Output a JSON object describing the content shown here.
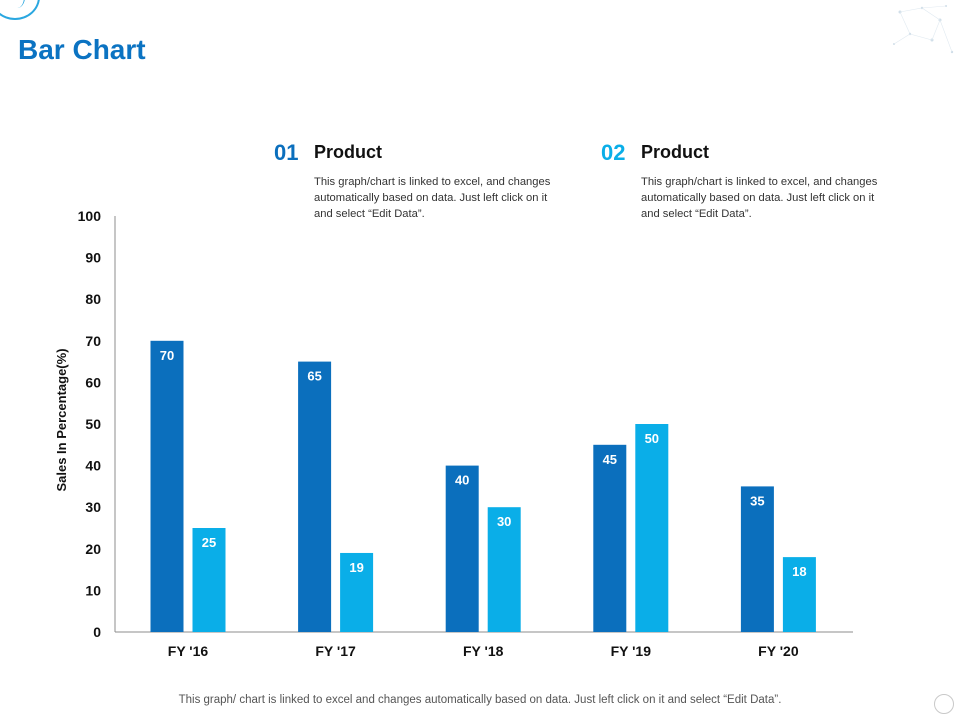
{
  "title": "Bar Chart",
  "legend": [
    {
      "number": "01",
      "name": "Product",
      "description": "This graph/chart is linked to excel, and changes automatically based on data. Just left click on it and select “Edit Data”.",
      "color": "#0b6fbd"
    },
    {
      "number": "02",
      "name": "Product",
      "description": "This graph/chart is linked to excel, and changes automatically based on data. Just left click on it and select “Edit Data”.",
      "color": "#0aaee8"
    }
  ],
  "footer": "This graph/ chart is linked to excel and changes automatically based on data. Just left click on it and select “Edit Data”.",
  "chart_data": {
    "type": "bar",
    "title": "",
    "xlabel": "",
    "ylabel": "Sales In Percentage(%)",
    "categories": [
      "FY '16",
      "FY '17",
      "FY '18",
      "FY '19",
      "FY '20"
    ],
    "series": [
      {
        "name": "01 Product",
        "values": [
          70,
          65,
          40,
          45,
          35
        ],
        "color": "#0b6fbd"
      },
      {
        "name": "02 Product",
        "values": [
          25,
          19,
          30,
          50,
          18
        ],
        "color": "#0aaee8"
      }
    ],
    "ylim": [
      0,
      100
    ],
    "yticks": [
      0,
      10,
      20,
      30,
      40,
      50,
      60,
      70,
      80,
      90,
      100
    ],
    "grid": false
  }
}
